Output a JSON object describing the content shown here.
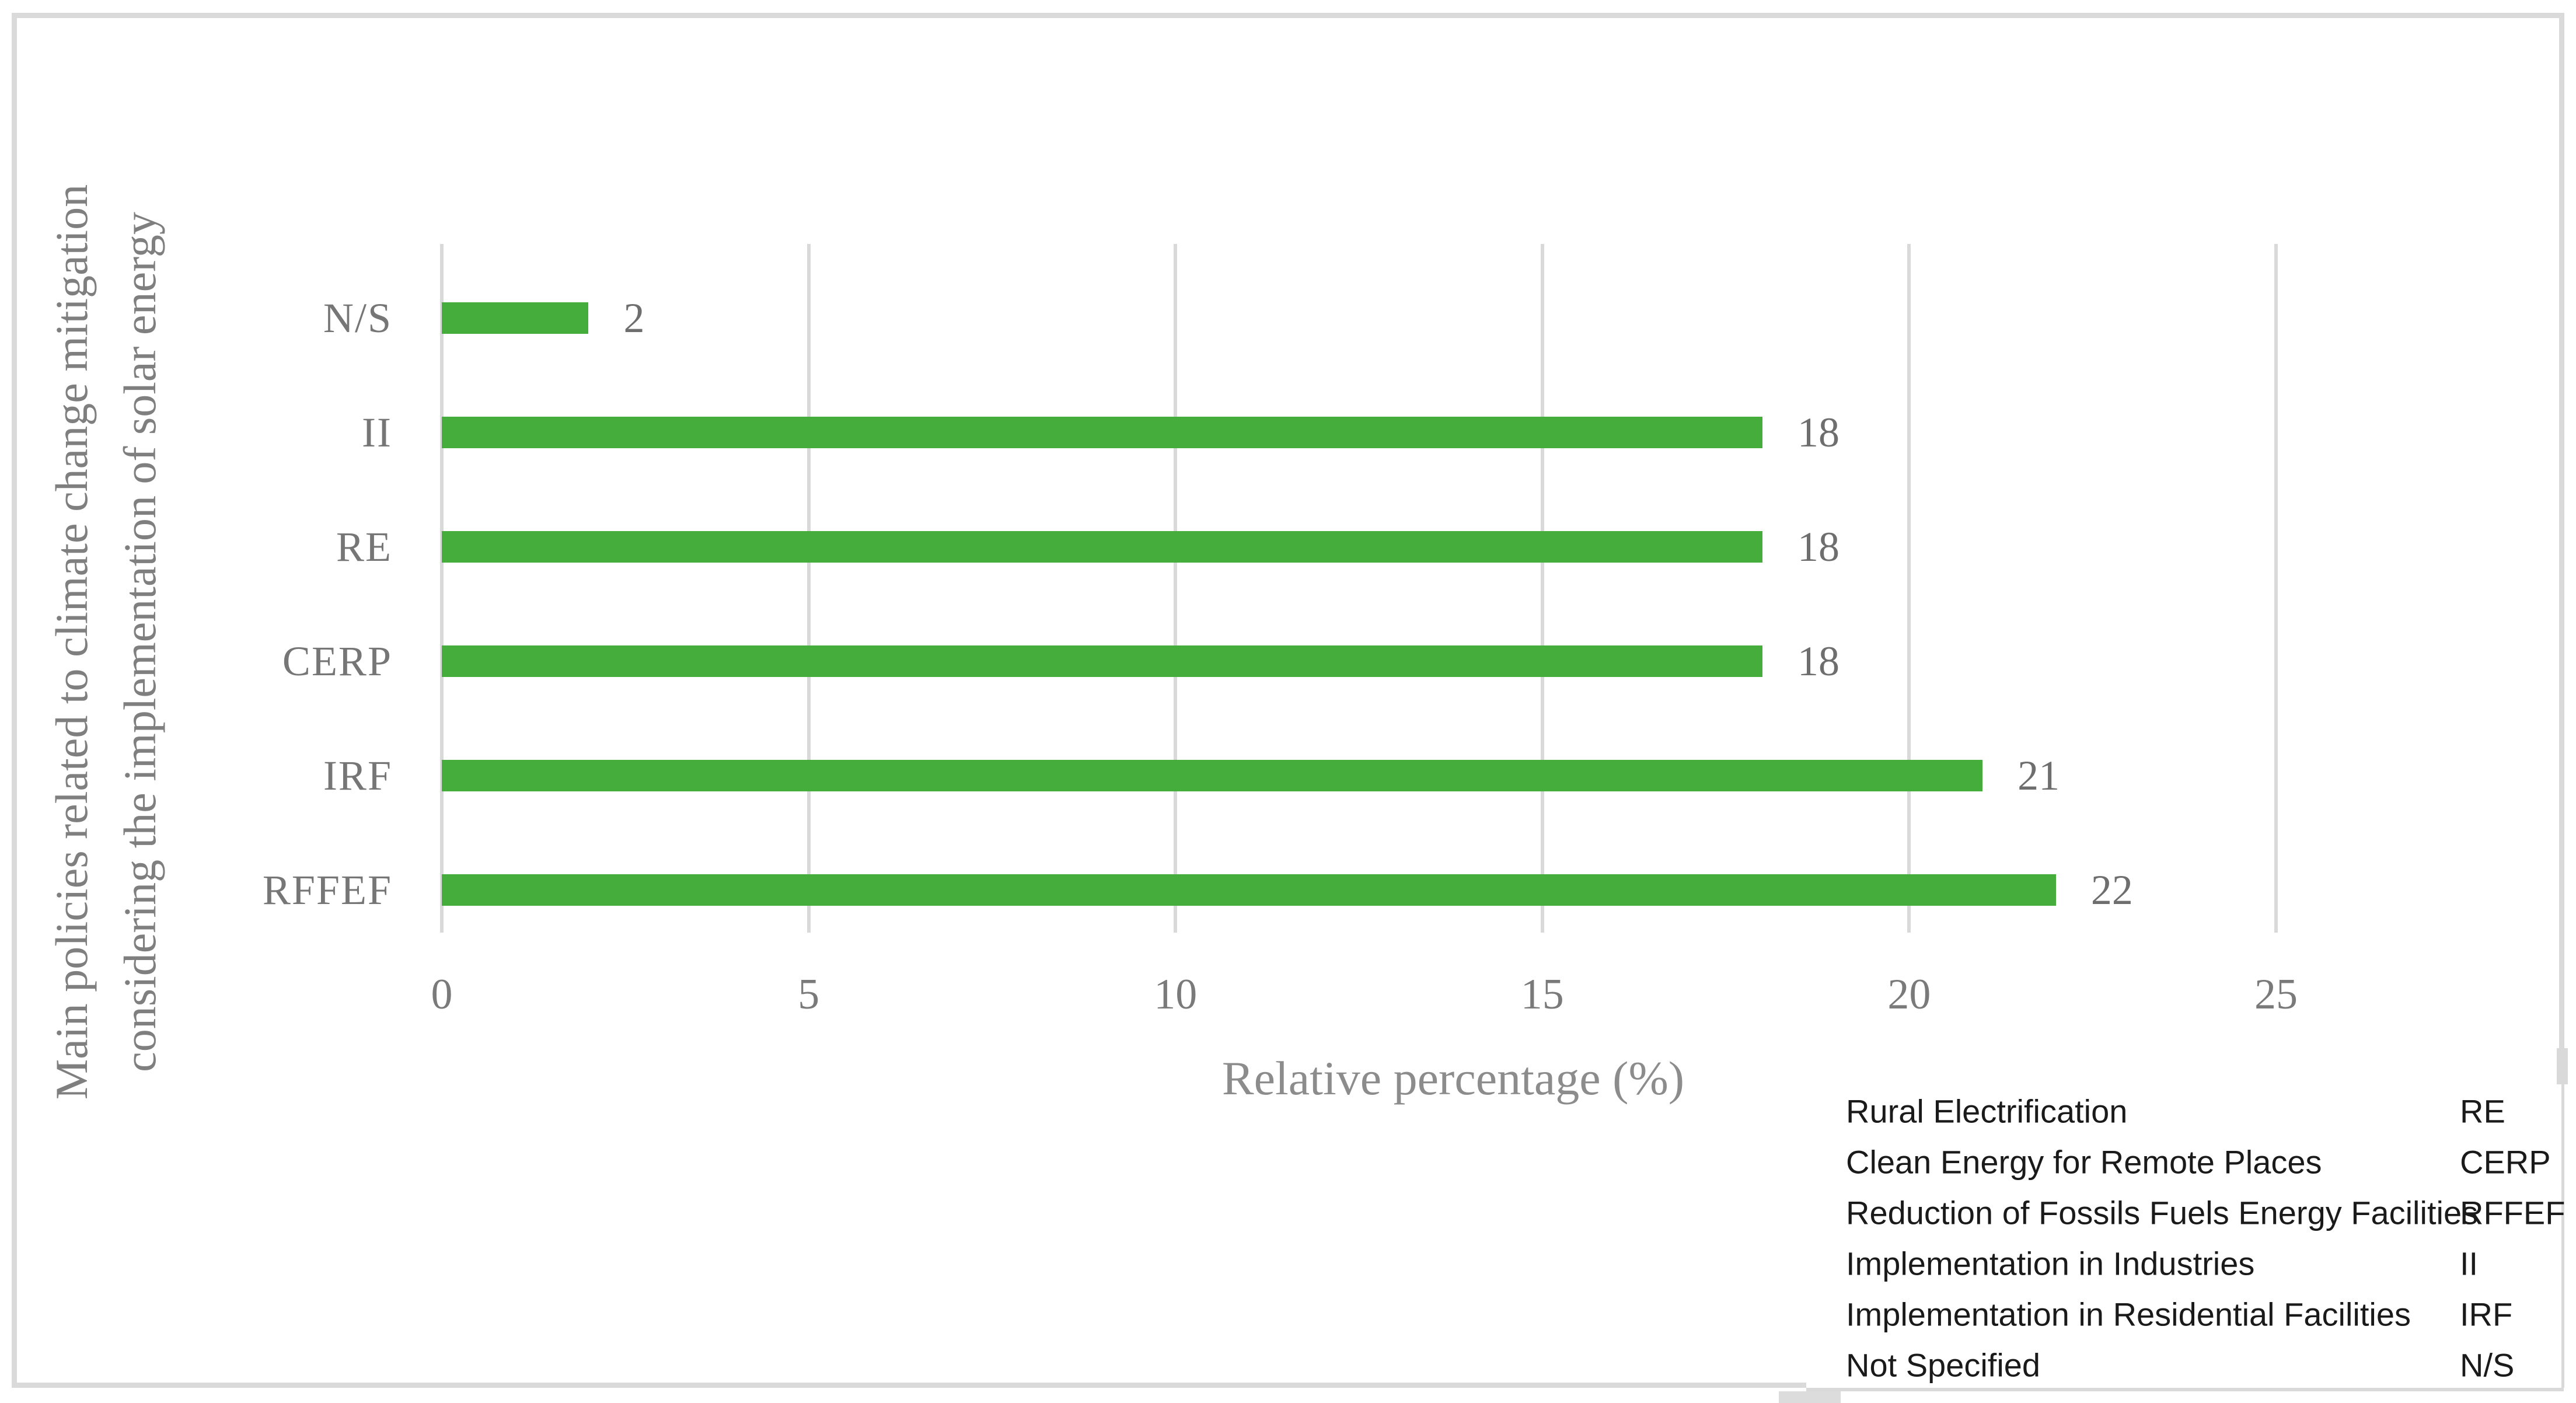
{
  "chart_data": {
    "type": "bar",
    "orientation": "horizontal",
    "categories": [
      "N/S",
      "II",
      "RE",
      "CERP",
      "IRF",
      "RFFEF"
    ],
    "values": [
      2,
      18,
      18,
      18,
      21,
      22
    ],
    "data_labels": [
      "2",
      "18",
      "18",
      "18",
      "21",
      "22"
    ],
    "x_ticks": [
      "0",
      "5",
      "10",
      "15",
      "20",
      "25"
    ],
    "xlim": [
      0,
      25
    ],
    "xlabel": "Relative percentage (%)",
    "ylabel_line1": "Main policies related to climate change mitigation",
    "ylabel_line2": "considering the implementation of solar energy",
    "grid": "vertical-gridlines-on",
    "legend_position": "bottom-right",
    "bar_color": "#45ad3b",
    "axis_text_color": "#7a7a7a",
    "gridline_color": "#d9d9d9"
  },
  "legend": {
    "rows": [
      {
        "name": "Rural Electrification",
        "abbr": "RE"
      },
      {
        "name": "Clean Energy for Remote Places",
        "abbr": "CERP"
      },
      {
        "name": "Reduction of Fossils Fuels Energy Facilities",
        "abbr": "RFFEF"
      },
      {
        "name": "Implementation in Industries",
        "abbr": "II"
      },
      {
        "name": "Implementation in Residential Facilities",
        "abbr": "IRF"
      },
      {
        "name": "Not Specified",
        "abbr": "N/S"
      }
    ]
  }
}
